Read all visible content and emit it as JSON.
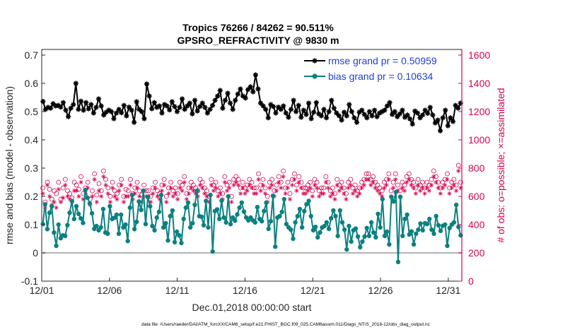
{
  "chart_data": {
    "type": "line",
    "title": "Tropics 76266 / 84262 = 90.511%",
    "subtitle": "GPSRO_REFRACTIVITY @ 9830 m",
    "xlabel": "Dec.01,2018 00:00:00 start",
    "ylabel": "rmse and bias (model - observation)",
    "ylabel_right": "# of obs: o=possible; ×=assimilated",
    "x_tick_labels": [
      "12/01",
      "12/06",
      "12/11",
      "12/16",
      "12/21",
      "12/26",
      "12/31"
    ],
    "x_tick_days": [
      1,
      6,
      11,
      16,
      21,
      26,
      31
    ],
    "xlim_days": [
      1,
      32
    ],
    "x_start_date": "2018-12-01",
    "ylim": [
      -0.1,
      0.72
    ],
    "y_ticks": [
      -0.1,
      0,
      0.1,
      0.2,
      0.3,
      0.4,
      0.5,
      0.6,
      0.7
    ],
    "y_tick_labels": [
      "-0.1",
      "0",
      "0.1",
      "0.2",
      "0.3",
      "0.4",
      "0.5",
      "0.6",
      "0.7"
    ],
    "ylim_right": [
      0,
      1640
    ],
    "y_ticks_right": [
      0,
      200,
      400,
      600,
      800,
      1000,
      1200,
      1400,
      1600
    ],
    "y_tick_labels_right": [
      "0",
      "200",
      "400",
      "600",
      "800",
      "1000",
      "1200",
      "1400",
      "1600"
    ],
    "grid": false,
    "legend_position": "top-right",
    "series": [
      {
        "name": "rmse grand pr = 0.50959",
        "color": "#000000",
        "marker": "asterisk",
        "values": [
          0.536,
          0.508,
          0.515,
          0.512,
          0.528,
          0.52,
          0.522,
          0.516,
          0.532,
          0.505,
          0.482,
          0.512,
          0.525,
          0.6,
          0.508,
          0.537,
          0.505,
          0.532,
          0.51,
          0.525,
          0.495,
          0.515,
          0.545,
          0.52,
          0.488,
          0.498,
          0.505,
          0.5,
          0.475,
          0.495,
          0.508,
          0.496,
          0.522,
          0.485,
          0.516,
          0.505,
          0.462,
          0.535,
          0.508,
          0.5,
          0.475,
          0.598,
          0.555,
          0.51,
          0.532,
          0.515,
          0.52,
          0.495,
          0.525,
          0.52,
          0.506,
          0.535,
          0.518,
          0.5,
          0.515,
          0.545,
          0.508,
          0.52,
          0.53,
          0.492,
          0.54,
          0.502,
          0.518,
          0.53,
          0.515,
          0.495,
          0.508,
          0.522,
          0.54,
          0.555,
          0.575,
          0.512,
          0.54,
          0.565,
          0.53,
          0.508,
          0.54,
          0.562,
          0.58,
          0.555,
          0.548,
          0.578,
          0.588,
          0.57,
          0.63,
          0.58,
          0.53,
          0.52,
          0.508,
          0.478,
          0.525,
          0.518,
          0.495,
          0.516,
          0.508,
          0.52,
          0.495,
          0.48,
          0.508,
          0.54,
          0.5,
          0.522,
          0.48,
          0.505,
          0.49,
          0.53,
          0.475,
          0.498,
          0.532,
          0.492,
          0.485,
          0.508,
          0.478,
          0.5,
          0.54,
          0.512,
          0.495,
          0.485,
          0.47,
          0.498,
          0.485,
          0.525,
          0.5,
          0.478,
          0.462,
          0.498,
          0.505,
          0.49,
          0.478,
          0.5,
          0.485,
          0.505,
          0.482,
          0.495,
          0.5,
          0.505,
          0.52,
          0.532,
          0.49,
          0.5,
          0.482,
          0.492,
          0.505,
          0.48,
          0.488,
          0.474,
          0.456,
          0.502,
          0.495,
          0.478,
          0.488,
          0.505,
          0.494,
          0.515,
          0.488,
          0.46,
          0.47,
          0.432,
          0.478,
          0.505,
          0.45,
          0.478,
          0.465,
          0.522,
          0.512,
          0.53
        ]
      },
      {
        "name": "bias grand pr = 0.10634",
        "color": "#0b8080",
        "marker": "dot",
        "values": [
          0.102,
          0.172,
          0.084,
          0.142,
          0.165,
          0.072,
          0.025,
          0.1,
          0.052,
          0.062,
          0.06,
          0.098,
          0.142,
          0.184,
          0.12,
          0.165,
          0.138,
          0.122,
          0.106,
          0.222,
          0.195,
          0.175,
          0.14,
          0.085,
          0.095,
          0.08,
          0.09,
          0.155,
          0.072,
          0.068,
          0.165,
          0.12,
          0.124,
          0.135,
          0.068,
          0.135,
          0.09,
          0.1,
          0.042,
          0.16,
          0.205,
          0.084,
          0.11,
          0.182,
          0.152,
          0.22,
          0.102,
          0.198,
          0.165,
          0.095,
          0.08,
          0.125,
          0.145,
          0.205,
          0.09,
          0.105,
          0.044,
          0.13,
          0.15,
          0.038,
          0.075,
          0.062,
          0.035,
          0.12,
          0.16,
          0.178,
          0.09,
          0.105,
          0.17,
          0.22,
          0.13,
          0.128,
          0.098,
          0.184,
          0.09,
          0.205,
          0.005,
          0.148,
          0.154,
          0.12,
          0.185,
          0.125,
          0.108,
          0.2,
          0.102,
          0.125,
          0.114,
          0.136,
          0.16,
          0.178,
          0.146,
          0.125,
          0.115,
          0.125,
          0.115,
          0.108,
          0.162,
          0.12,
          0.112,
          0.148,
          0.178,
          0.085,
          0.112,
          0.202,
          0.022,
          0.125,
          0.13,
          0.145,
          0.19,
          0.102,
          0.09,
          0.082,
          0.05,
          0.108,
          0.13,
          0.155,
          0.09,
          0.148,
          0.172,
          0.184,
          0.13,
          0.08,
          0.092,
          0.055,
          0.072,
          0.09,
          0.095,
          0.108,
          0.085,
          0.122,
          0.15,
          0.13,
          0.06,
          0.15,
          0.108,
          0.082,
          0.012,
          0.095,
          0.04,
          0.08,
          0.086,
          0.058,
          0.02,
          0.04,
          0.058,
          0.088,
          0.06,
          0.108,
          0.072,
          0.055,
          0.138,
          0.09,
          0.19,
          0.06,
          0.075,
          0.03,
          0.198,
          0.182,
          0.215,
          -0.032,
          0.198,
          0.06,
          0.12,
          0.135,
          0.065,
          0.076,
          0.03,
          0.068,
          0.082,
          0.104,
          0.08,
          0.105,
          0.102,
          0.12,
          0.082,
          0.068,
          0.13,
          0.098,
          0.078,
          0.096,
          0.1,
          0.025,
          0.088,
          0.1,
          0.108,
          0.17,
          0.092,
          0.062
        ]
      },
      {
        "name": "possible",
        "color": "#d6004f",
        "marker": "circle",
        "axis": "right",
        "values": [
          660,
          560,
          700,
          650,
          580,
          640,
          620,
          700,
          580,
          660,
          720,
          640,
          620,
          590,
          700,
          680,
          650,
          740,
          620,
          660,
          700,
          580,
          640,
          760,
          610,
          690,
          640,
          780,
          720,
          660,
          600,
          700,
          640,
          620,
          680,
          720,
          600,
          650,
          640,
          720,
          620,
          660,
          700,
          640,
          610,
          680,
          640,
          640,
          600,
          660,
          700,
          640,
          620,
          680,
          720,
          600,
          660,
          700,
          640,
          660,
          620,
          700,
          680,
          740,
          620,
          660,
          700,
          680,
          660,
          640,
          720,
          700,
          660,
          640,
          600,
          720,
          680,
          700,
          640,
          660,
          620,
          740,
          680,
          700,
          600,
          720,
          740,
          720,
          660,
          700,
          660,
          680,
          720,
          700,
          660,
          660,
          760,
          680,
          720,
          660,
          600,
          700,
          720,
          640,
          680,
          740,
          700,
          780,
          660,
          700,
          620,
          720,
          760,
          680,
          740,
          700,
          660,
          660,
          680,
          700,
          640,
          720,
          700,
          640,
          660,
          660,
          740,
          700,
          640,
          660,
          620,
          720,
          680,
          700,
          660,
          620,
          700,
          720,
          660,
          680,
          640,
          660,
          700,
          720,
          760,
          760,
          720,
          740,
          700,
          680,
          660,
          640,
          700,
          720,
          760,
          640,
          700,
          760,
          680,
          640,
          700,
          680,
          740,
          760,
          720,
          700,
          660,
          720,
          680,
          700,
          660,
          700,
          680,
          720,
          780,
          740,
          700,
          660,
          700,
          720,
          760,
          660,
          700,
          720,
          680,
          820,
          700
        ]
      },
      {
        "name": "assimilated",
        "color": "#d6004f",
        "marker": "asterisk",
        "axis": "right",
        "values": [
          620,
          520,
          680,
          600,
          540,
          560,
          520,
          650,
          560,
          590,
          680,
          600,
          580,
          560,
          640,
          640,
          600,
          700,
          580,
          620,
          660,
          540,
          600,
          720,
          560,
          640,
          600,
          740,
          680,
          620,
          560,
          660,
          600,
          580,
          640,
          680,
          560,
          600,
          600,
          680,
          580,
          620,
          660,
          600,
          560,
          640,
          600,
          600,
          560,
          620,
          660,
          600,
          580,
          640,
          680,
          560,
          620,
          660,
          600,
          620,
          580,
          660,
          640,
          700,
          580,
          620,
          660,
          640,
          620,
          600,
          680,
          660,
          620,
          600,
          560,
          680,
          640,
          660,
          600,
          620,
          580,
          700,
          640,
          660,
          560,
          680,
          700,
          680,
          620,
          660,
          620,
          640,
          680,
          660,
          620,
          620,
          720,
          640,
          680,
          620,
          560,
          660,
          680,
          600,
          640,
          700,
          660,
          740,
          620,
          660,
          580,
          680,
          720,
          640,
          700,
          660,
          620,
          620,
          640,
          660,
          600,
          680,
          660,
          600,
          620,
          620,
          700,
          660,
          600,
          620,
          580,
          680,
          640,
          660,
          620,
          580,
          660,
          680,
          620,
          640,
          600,
          620,
          660,
          680,
          720,
          720,
          680,
          700,
          660,
          640,
          620,
          600,
          660,
          680,
          720,
          600,
          660,
          720,
          640,
          600,
          660,
          640,
          700,
          720,
          680,
          660,
          620,
          680,
          640,
          660,
          620,
          660,
          640,
          680,
          740,
          700,
          660,
          620,
          660,
          680,
          720,
          620,
          660,
          680,
          640,
          780,
          660
        ]
      }
    ],
    "footnote": "data file: /Users/raeder/DAI/ATM_forcXX/CAM6_setup/f.e21.FHIST_BGC.f09_025.CAM6assim.011/Diags_NTrS_2018-12/obs_diag_output.nc",
    "colors": {
      "axis": "#262626",
      "right_axis": "#d6004f",
      "zero_line": "#b3b3b3",
      "legend_text": "#1f3fd8"
    }
  }
}
